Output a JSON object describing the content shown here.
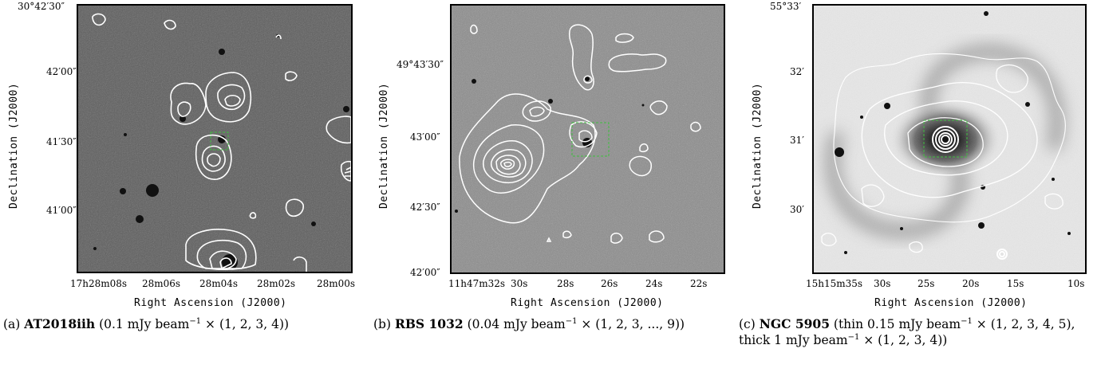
{
  "panels": [
    {
      "ylabel": "Declination (J2000)",
      "xlabel": "Right Ascension (J2000)",
      "yticks": [
        "30°42′30″",
        "42′00″",
        "41′30″",
        "41′00″"
      ],
      "xticks": [
        "17h28m08s",
        "28m06s",
        "28m04s",
        "28m02s",
        "28m00s"
      ],
      "caption": {
        "prefix": "(a) ",
        "name": "AT2018iih",
        "text_1": " (0.1 mJy beam",
        "sup": "−1",
        "text_2": " × (1, 2, 3, 4))"
      }
    },
    {
      "ylabel": "Declination (J2000)",
      "xlabel": "Right Ascension (J2000)",
      "yticks": [
        "49°43′30″",
        "43′00″",
        "42′30″",
        "42′00″"
      ],
      "xticks": [
        "11h47m32s",
        "30s",
        "28s",
        "26s",
        "24s",
        "22s"
      ],
      "caption": {
        "prefix": "(b) ",
        "name": "RBS 1032",
        "text_1": " (0.04 mJy beam",
        "sup": "−1",
        "text_2": " × (1, 2, 3, ..., 9))"
      }
    },
    {
      "ylabel": "Declination (J2000)",
      "xlabel": "Right Ascension (J2000)",
      "yticks": [
        "55°33′",
        "32′",
        "31′",
        "30′"
      ],
      "xticks": [
        "15h15m35s",
        "30s",
        "25s",
        "20s",
        "15s",
        "10s"
      ],
      "caption": {
        "prefix": "(c) ",
        "name": "NGC 5905",
        "text_1": " (thin 0.15 mJy beam",
        "sup": "−1",
        "text_2": " × (1, 2, 3, 4, 5), thick 1 mJy beam",
        "sup2": "−1",
        "text_3": " × (1, 2, 3, 4))"
      }
    }
  ],
  "colors": {
    "contour": "#ffffff",
    "box": "#3fbf3f",
    "bg_dark": "#5c5c5c",
    "bg_light": "#e8e8e8"
  }
}
